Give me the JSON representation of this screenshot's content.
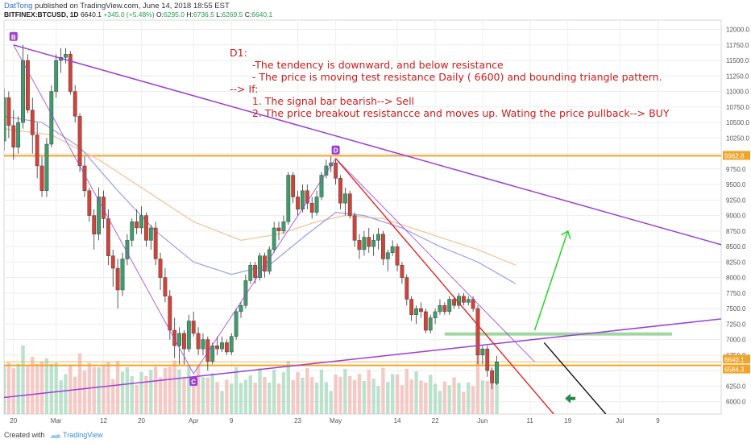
{
  "header": {
    "author": "DatTong",
    "published": "published on TradingView.com, June 14, 2018 18:55 EST",
    "symbol": "BITFINEX:BTCUSD, 1D",
    "price": "6640.1",
    "change": "+345.0 (+5.48%)",
    "ohlc_o_label": "O:",
    "ohlc_o": "6295.0",
    "ohlc_h_label": "H:",
    "ohlc_h": "6736.5",
    "ohlc_l_label": "L:",
    "ohlc_l": "6269.5",
    "ohlc_c_label": "C:",
    "ohlc_c": "6640.1"
  },
  "annotation": {
    "line1": "D1:",
    "line2": "    -The tendency is downward, and below resistance",
    "line3": "    - The price is moving test resistance Daily ( 6600) and bounding triangle pattern.",
    "line4": "--> If:",
    "line5": "    1. The signal bar bearish--> Sell",
    "line6": "    2. The price breakout resistancce and moves up. Wating the price pullback--> BUY"
  },
  "footer": {
    "created_with": "Created with",
    "brand": "TradingView"
  },
  "colors": {
    "up": "#3e9c6b",
    "down": "#d0433a",
    "purple": "#9b3fd6",
    "orange": "#f0a42a",
    "red_line": "#e82323",
    "green_arrow": "#33d433",
    "ma_orange": "#f5c49a",
    "ma_blue": "#a3a3ea"
  },
  "chart_data": {
    "type": "candlestick",
    "symbol": "BITFINEX:BTCUSD",
    "timeframe": "1D",
    "y_range": [
      5800,
      12150
    ],
    "y_ticks": [
      6000,
      6250,
      6500,
      6750,
      7000,
      7250,
      7500,
      7750,
      8000,
      8250,
      8500,
      8750,
      9000,
      9250,
      9500,
      9750,
      10000,
      10250,
      10500,
      10750,
      11000,
      11250,
      11500,
      11750,
      12000
    ],
    "x_labels": [
      {
        "i": 2,
        "label": "20"
      },
      {
        "i": 11,
        "label": "Mar"
      },
      {
        "i": 21,
        "label": "12"
      },
      {
        "i": 29,
        "label": "20"
      },
      {
        "i": 40,
        "label": "Apr"
      },
      {
        "i": 48,
        "label": "9"
      },
      {
        "i": 62,
        "label": "23"
      },
      {
        "i": 70,
        "label": "May"
      },
      {
        "i": 83,
        "label": "14"
      },
      {
        "i": 91,
        "label": "22"
      },
      {
        "i": 101,
        "label": "Jun"
      },
      {
        "i": 111,
        "label": "11"
      },
      {
        "i": 119,
        "label": "19"
      },
      {
        "i": 130,
        "label": "Jul"
      },
      {
        "i": 138,
        "label": "9"
      }
    ],
    "price_labels": [
      {
        "value": 9962.8,
        "text": "9962.8",
        "color": "#f0a42a"
      },
      {
        "value": 6640.1,
        "text": "6640.1",
        "color": "#f0a42a"
      },
      {
        "value": 6584.3,
        "text": "6584.3",
        "color": "#f0a42a"
      }
    ],
    "candles": [
      [
        10200,
        11050,
        10050,
        10900
      ],
      [
        10900,
        11000,
        10250,
        10450
      ],
      [
        10450,
        10700,
        9900,
        10100
      ],
      [
        10100,
        10600,
        10000,
        10500
      ],
      [
        10500,
        11750,
        10400,
        11500
      ],
      [
        11500,
        11600,
        10650,
        10700
      ],
      [
        10700,
        10900,
        10000,
        10300
      ],
      [
        10300,
        10500,
        9600,
        9800
      ],
      [
        9800,
        9950,
        9300,
        9400
      ],
      [
        9400,
        10250,
        9300,
        10150
      ],
      [
        10150,
        11100,
        10100,
        11000
      ],
      [
        11000,
        11600,
        10900,
        11500
      ],
      [
        11500,
        11700,
        11300,
        11550
      ],
      [
        11550,
        11700,
        11450,
        11600
      ],
      [
        11600,
        11650,
        10950,
        11000
      ],
      [
        11000,
        11100,
        10500,
        10600
      ],
      [
        10600,
        10650,
        9700,
        9800
      ],
      [
        9800,
        9950,
        9300,
        9400
      ],
      [
        9400,
        9450,
        8900,
        9000
      ],
      [
        9000,
        9100,
        8450,
        8700
      ],
      [
        8700,
        9450,
        8600,
        9300
      ],
      [
        9300,
        9400,
        8800,
        8950
      ],
      [
        8950,
        9100,
        8200,
        8350
      ],
      [
        8350,
        8450,
        7850,
        8150
      ],
      [
        8150,
        8300,
        7500,
        7800
      ],
      [
        7800,
        8400,
        7700,
        8300
      ],
      [
        8300,
        8700,
        8200,
        8600
      ],
      [
        8600,
        8950,
        8500,
        8900
      ],
      [
        8900,
        9100,
        8700,
        8800
      ],
      [
        8800,
        9150,
        8700,
        9000
      ],
      [
        9000,
        9050,
        8500,
        8600
      ],
      [
        8600,
        8850,
        8450,
        8800
      ],
      [
        8800,
        8900,
        8200,
        8300
      ],
      [
        8300,
        8400,
        7800,
        8000
      ],
      [
        8000,
        8150,
        7600,
        7700
      ],
      [
        7700,
        7800,
        7000,
        7150
      ],
      [
        7150,
        7350,
        6700,
        6900
      ],
      [
        6900,
        7200,
        6600,
        7100
      ],
      [
        7100,
        7150,
        6600,
        6850
      ],
      [
        6850,
        7400,
        6800,
        7300
      ],
      [
        7300,
        7450,
        7050,
        7100
      ],
      [
        7100,
        7200,
        6750,
        6850
      ],
      [
        6850,
        7100,
        6750,
        7000
      ],
      [
        7000,
        7050,
        6500,
        6650
      ],
      [
        6650,
        6950,
        6600,
        6900
      ],
      [
        6900,
        7050,
        6750,
        6850
      ],
      [
        6850,
        7050,
        6800,
        6950
      ],
      [
        6950,
        7000,
        6750,
        6800
      ],
      [
        6800,
        7100,
        6750,
        7050
      ],
      [
        7050,
        7500,
        7000,
        7450
      ],
      [
        7450,
        7600,
        7350,
        7550
      ],
      [
        7550,
        8050,
        7500,
        7950
      ],
      [
        7950,
        8250,
        7900,
        8200
      ],
      [
        8200,
        8250,
        7900,
        8000
      ],
      [
        8000,
        8400,
        7950,
        8350
      ],
      [
        8350,
        8400,
        8000,
        8100
      ],
      [
        8100,
        8500,
        8050,
        8450
      ],
      [
        8450,
        8900,
        8400,
        8800
      ],
      [
        8800,
        8900,
        8600,
        8750
      ],
      [
        8750,
        9000,
        8700,
        8900
      ],
      [
        8900,
        9700,
        8850,
        9650
      ],
      [
        9650,
        9700,
        9200,
        9300
      ],
      [
        9300,
        9400,
        9000,
        9100
      ],
      [
        9100,
        9500,
        9050,
        9400
      ],
      [
        9400,
        9500,
        9100,
        9200
      ],
      [
        9200,
        9300,
        8950,
        9050
      ],
      [
        9050,
        9400,
        9000,
        9300
      ],
      [
        9300,
        9700,
        9250,
        9650
      ],
      [
        9650,
        9900,
        9600,
        9800
      ],
      [
        9800,
        9950,
        9700,
        9850
      ],
      [
        9850,
        9900,
        9500,
        9600
      ],
      [
        9600,
        9650,
        9100,
        9200
      ],
      [
        9200,
        9450,
        9000,
        9350
      ],
      [
        9350,
        9400,
        8950,
        9000
      ],
      [
        9000,
        9050,
        8500,
        8600
      ],
      [
        8600,
        8700,
        8300,
        8450
      ],
      [
        8450,
        8750,
        8350,
        8650
      ],
      [
        8650,
        8800,
        8400,
        8500
      ],
      [
        8500,
        8700,
        8350,
        8600
      ],
      [
        8600,
        8800,
        8450,
        8700
      ],
      [
        8700,
        8750,
        8200,
        8300
      ],
      [
        8300,
        8450,
        8100,
        8400
      ],
      [
        8400,
        8600,
        8350,
        8500
      ],
      [
        8500,
        8550,
        8100,
        8200
      ],
      [
        8200,
        8250,
        7900,
        8000
      ],
      [
        8000,
        8050,
        7550,
        7650
      ],
      [
        7650,
        7700,
        7300,
        7400
      ],
      [
        7400,
        7550,
        7250,
        7500
      ],
      [
        7500,
        7600,
        7350,
        7450
      ],
      [
        7450,
        7500,
        7100,
        7150
      ],
      [
        7150,
        7400,
        7100,
        7350
      ],
      [
        7350,
        7500,
        7250,
        7450
      ],
      [
        7450,
        7650,
        7400,
        7550
      ],
      [
        7550,
        7600,
        7400,
        7450
      ],
      [
        7450,
        7700,
        7400,
        7650
      ],
      [
        7650,
        7700,
        7500,
        7550
      ],
      [
        7550,
        7750,
        7500,
        7700
      ],
      [
        7700,
        7750,
        7550,
        7600
      ],
      [
        7600,
        7700,
        7550,
        7650
      ],
      [
        7650,
        7700,
        7450,
        7500
      ],
      [
        7500,
        7550,
        6600,
        6750
      ],
      [
        6750,
        6900,
        6600,
        6850
      ],
      [
        6850,
        6900,
        6400,
        6500
      ],
      [
        6500,
        6550,
        6200,
        6300
      ],
      [
        6295,
        6736.5,
        6269.5,
        6640.1
      ]
    ],
    "moving_averages": [
      {
        "name": "MA-orange",
        "color": "#f5c49a",
        "points": [
          [
            0,
            10400
          ],
          [
            10,
            10300
          ],
          [
            20,
            9900
          ],
          [
            30,
            9400
          ],
          [
            40,
            8900
          ],
          [
            50,
            8600
          ],
          [
            58,
            8700
          ],
          [
            66,
            8900
          ],
          [
            72,
            9000
          ],
          [
            80,
            8950
          ],
          [
            90,
            8700
          ],
          [
            100,
            8450
          ],
          [
            108,
            8200
          ]
        ]
      },
      {
        "name": "MA-blue",
        "color": "#a3a3ea",
        "points": [
          [
            0,
            10600
          ],
          [
            8,
            10500
          ],
          [
            16,
            10100
          ],
          [
            24,
            9400
          ],
          [
            32,
            8750
          ],
          [
            40,
            8250
          ],
          [
            48,
            8050
          ],
          [
            56,
            8200
          ],
          [
            64,
            8700
          ],
          [
            70,
            9050
          ],
          [
            76,
            9000
          ],
          [
            84,
            8800
          ],
          [
            92,
            8500
          ],
          [
            100,
            8250
          ],
          [
            108,
            7900
          ]
        ]
      }
    ],
    "drawings": {
      "resistance_line": {
        "color": "#9b3fd6",
        "from": [
          2,
          11750
        ],
        "to": [
          175,
          8020
        ]
      },
      "support_line": {
        "color": "#9b3fd6",
        "from": [
          -2,
          6050
        ],
        "to": [
          175,
          7530
        ]
      },
      "zigzag": {
        "color": "#9b3fd6",
        "points": [
          [
            2,
            11750
          ],
          [
            40,
            6450
          ],
          [
            70,
            9920
          ],
          [
            112,
            6640
          ]
        ]
      },
      "wave_labels": [
        {
          "i": 2,
          "v": 11750,
          "text": "B"
        },
        {
          "i": 40,
          "v": 6450,
          "text": "C"
        },
        {
          "i": 70,
          "v": 9920,
          "text": "D"
        }
      ],
      "downtrend_line": {
        "color": "#e82323",
        "from": [
          70,
          9920
        ],
        "to": [
          116,
          5800
        ]
      },
      "black_line": {
        "color": "#111111",
        "from": [
          114,
          6950
        ],
        "to": [
          127,
          5800
        ]
      },
      "h_resistance_9962": {
        "color": "#f0a42a",
        "value": 9962.8
      },
      "h_support_6584": {
        "color": "#f0a42a",
        "value": 6584.3
      },
      "green_zone": {
        "color": "#8fd08f",
        "from_i": 93,
        "to_i": 141,
        "value": 7090
      },
      "green_arrow": {
        "color": "#33d433",
        "from": [
          112,
          7150
        ],
        "to": [
          119,
          8750
        ]
      },
      "dark_green_arrow": {
        "color": "#2b8a4a",
        "i": 116,
        "v": 6050
      }
    }
  }
}
